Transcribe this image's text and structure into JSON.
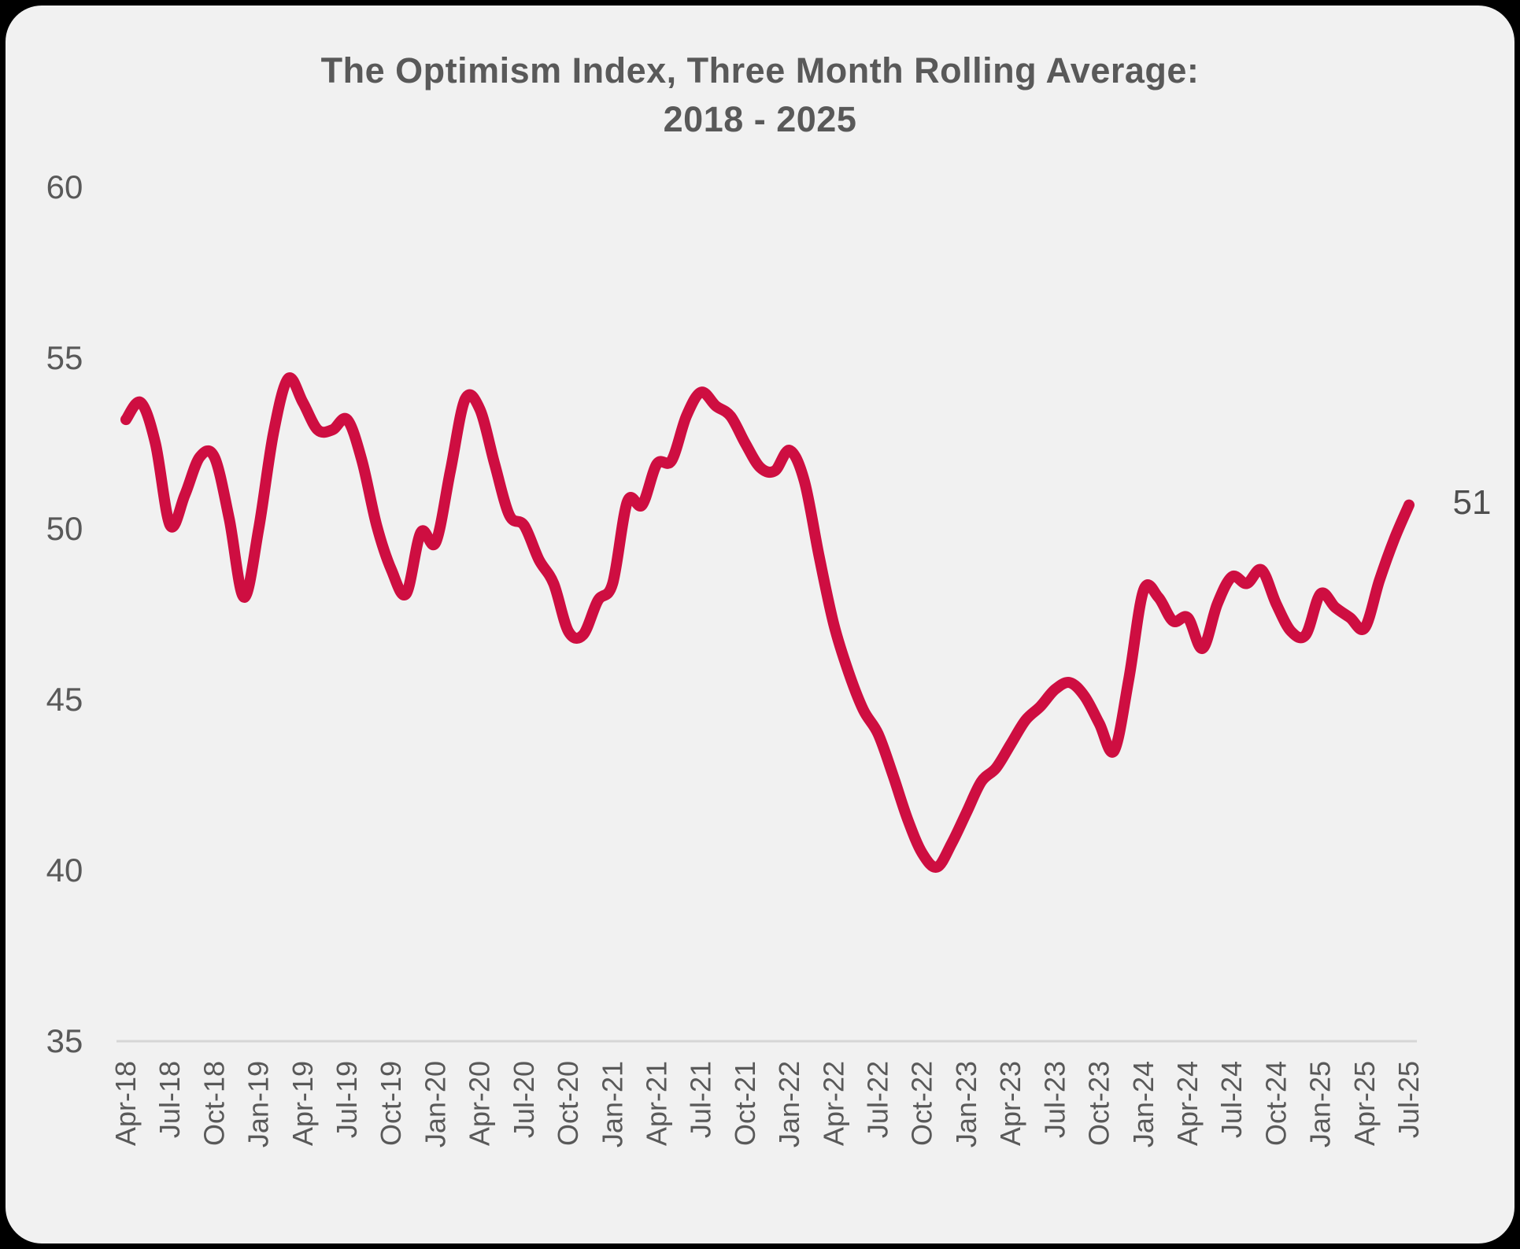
{
  "title": {
    "line1": "The Optimism Index, Three Month Rolling Average:",
    "line2": "2018 - 2025"
  },
  "end_label": "51",
  "colors": {
    "line": "#CE0E41",
    "panel_background": "#F1F1F1",
    "outer_background": "#000000",
    "text": "#595959",
    "axis_line": "#D6D6D6"
  },
  "chart_data": {
    "type": "line",
    "title": "The Optimism Index, Three Month Rolling Average: 2018 - 2025",
    "series_name": "Optimism Index (3-month rolling average)",
    "x_start_label": "Apr-18",
    "x_end_label": "Jul-25",
    "x_tick_labels": [
      "Apr-18",
      "Jul-18",
      "Oct-18",
      "Jan-19",
      "Apr-19",
      "Jul-19",
      "Oct-19",
      "Jan-20",
      "Apr-20",
      "Jul-20",
      "Oct-20",
      "Jan-21",
      "Apr-21",
      "Jul-21",
      "Oct-21",
      "Jan-22",
      "Apr-22",
      "Jul-22",
      "Oct-22",
      "Jan-23",
      "Apr-23",
      "Jul-23",
      "Oct-23",
      "Jan-24",
      "Apr-24",
      "Jul-24",
      "Oct-24",
      "Jan-25",
      "Apr-25",
      "Jul-25"
    ],
    "y_ticks": [
      60,
      55,
      50,
      45,
      40,
      35
    ],
    "ylim": [
      35,
      60
    ],
    "grid": false,
    "legend": "none",
    "last_point_label": "51",
    "values": [
      53.2,
      53.7,
      52.5,
      50.1,
      51.0,
      52.1,
      52.1,
      50.3,
      48.0,
      50.0,
      52.8,
      54.4,
      53.7,
      52.9,
      52.9,
      53.2,
      52.0,
      50.1,
      48.8,
      48.1,
      49.9,
      49.6,
      51.7,
      53.8,
      53.5,
      51.9,
      50.4,
      50.1,
      49.1,
      48.4,
      47.0,
      46.9,
      47.9,
      48.4,
      50.8,
      50.7,
      51.9,
      52.0,
      53.3,
      54.0,
      53.6,
      53.3,
      52.5,
      51.8,
      51.7,
      52.3,
      51.4,
      49.2,
      47.2,
      45.8,
      44.7,
      44.0,
      42.8,
      41.5,
      40.5,
      40.1,
      40.8,
      41.7,
      42.6,
      43.0,
      43.7,
      44.4,
      44.8,
      45.3,
      45.5,
      45.1,
      44.3,
      43.5,
      45.6,
      48.2,
      48.0,
      47.3,
      47.4,
      46.5,
      47.8,
      48.6,
      48.4,
      48.8,
      47.8,
      47.0,
      46.9,
      48.1,
      47.7,
      47.4,
      47.1,
      48.5,
      49.7,
      50.7
    ]
  }
}
